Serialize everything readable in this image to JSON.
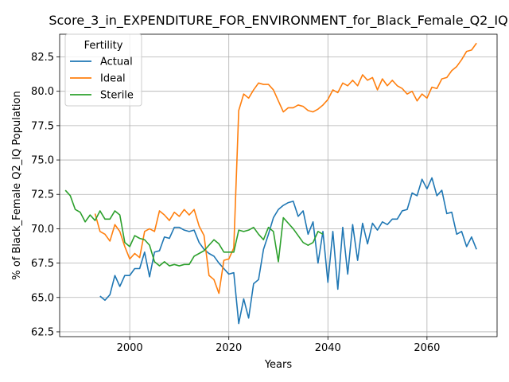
{
  "chart_data": {
    "type": "line",
    "title": "Score_3_in_EXPENDITURE_FOR_ENVIRONMENT_for_Black_Female_Q2_IQ",
    "xlabel": "Years",
    "ylabel": "% of Black_Female Q2_IQ Population",
    "xlim": [
      1985.85,
      2074.15
    ],
    "ylim": [
      62.15,
      84.15
    ],
    "xticks": [
      2000,
      2020,
      2040,
      2060
    ],
    "yticks": [
      62.5,
      65.0,
      67.5,
      70.0,
      72.5,
      75.0,
      77.5,
      80.0,
      82.5
    ],
    "grid": true,
    "legend": {
      "title": "Fertility",
      "placement": "top-left"
    },
    "series": [
      {
        "name": "Actual",
        "color": "#1f77b4",
        "x": [
          1994,
          1995,
          1996,
          1997,
          1998,
          1999,
          2000,
          2001,
          2002,
          2003,
          2004,
          2005,
          2006,
          2007,
          2008,
          2009,
          2010,
          2011,
          2012,
          2013,
          2014,
          2015,
          2016,
          2017,
          2018,
          2019,
          2020,
          2021,
          2022,
          2023,
          2024,
          2025,
          2026,
          2027,
          2028,
          2029,
          2030,
          2031,
          2032,
          2033,
          2034,
          2035,
          2036,
          2037,
          2038,
          2039,
          2040,
          2041,
          2042,
          2043,
          2044,
          2045,
          2046,
          2047,
          2048,
          2049,
          2050,
          2051,
          2052,
          2053,
          2054,
          2055,
          2056,
          2057,
          2058,
          2059,
          2060,
          2061,
          2062,
          2063,
          2064,
          2065,
          2066,
          2067,
          2068,
          2069,
          2070
        ],
        "values": [
          65.1,
          64.8,
          65.2,
          66.6,
          65.8,
          66.6,
          66.6,
          67.1,
          67.1,
          68.3,
          66.5,
          68.3,
          68.4,
          69.4,
          69.3,
          70.1,
          70.1,
          69.9,
          69.8,
          69.9,
          69.0,
          68.5,
          68.2,
          68.0,
          67.5,
          67.1,
          66.7,
          66.8,
          63.1,
          64.9,
          63.5,
          66.0,
          66.3,
          68.5,
          69.6,
          70.8,
          71.4,
          71.7,
          71.9,
          72.0,
          70.9,
          71.3,
          69.6,
          70.5,
          67.5,
          69.8,
          66.1,
          69.8,
          65.6,
          70.1,
          66.7,
          70.3,
          67.7,
          70.4,
          68.9,
          70.4,
          69.9,
          70.5,
          70.3,
          70.7,
          70.7,
          71.3,
          71.4,
          72.6,
          72.4,
          73.6,
          72.9,
          73.7,
          72.4,
          72.8,
          71.1,
          71.2,
          69.6,
          69.8,
          68.7,
          69.4,
          68.5
        ]
      },
      {
        "name": "Ideal",
        "color": "#ff7f0e",
        "x": [
          1993,
          1994,
          1995,
          1996,
          1997,
          1998,
          1999,
          2000,
          2001,
          2002,
          2003,
          2004,
          2005,
          2006,
          2007,
          2008,
          2009,
          2010,
          2011,
          2012,
          2013,
          2014,
          2015,
          2016,
          2017,
          2018,
          2019,
          2020,
          2021,
          2022,
          2023,
          2024,
          2025,
          2026,
          2027,
          2028,
          2029,
          2030,
          2031,
          2032,
          2033,
          2034,
          2035,
          2036,
          2037,
          2038,
          2039,
          2040,
          2041,
          2042,
          2043,
          2044,
          2045,
          2046,
          2047,
          2048,
          2049,
          2050,
          2051,
          2052,
          2053,
          2054,
          2055,
          2056,
          2057,
          2058,
          2059,
          2060,
          2061,
          2062,
          2063,
          2064,
          2065,
          2066,
          2067,
          2068,
          2069,
          2070
        ],
        "values": [
          71.1,
          69.8,
          69.6,
          69.1,
          70.3,
          69.8,
          68.7,
          67.8,
          68.2,
          67.9,
          69.8,
          70.0,
          69.8,
          71.3,
          71.0,
          70.6,
          71.2,
          70.9,
          71.4,
          71.0,
          71.4,
          70.2,
          69.5,
          66.6,
          66.3,
          65.3,
          67.7,
          67.8,
          68.6,
          78.6,
          79.8,
          79.5,
          80.1,
          80.6,
          80.5,
          80.5,
          80.1,
          79.3,
          78.5,
          78.8,
          78.8,
          79.0,
          78.9,
          78.6,
          78.5,
          78.7,
          79.0,
          79.4,
          80.1,
          79.9,
          80.6,
          80.4,
          80.8,
          80.4,
          81.2,
          80.8,
          81.0,
          80.1,
          80.9,
          80.4,
          80.8,
          80.4,
          80.2,
          79.8,
          80.0,
          79.3,
          79.8,
          79.5,
          80.3,
          80.2,
          80.9,
          81.0,
          81.5,
          81.8,
          82.3,
          82.9,
          83.0,
          83.5
        ]
      },
      {
        "name": "Sterile",
        "color": "#2ca02c",
        "x": [
          1987,
          1988,
          1989,
          1990,
          1991,
          1992,
          1993,
          1994,
          1995,
          1996,
          1997,
          1998,
          1999,
          2000,
          2001,
          2002,
          2003,
          2004,
          2005,
          2006,
          2007,
          2008,
          2009,
          2010,
          2011,
          2012,
          2013,
          2014,
          2015,
          2016,
          2017,
          2018,
          2019,
          2020,
          2021,
          2022,
          2023,
          2024,
          2025,
          2026,
          2027,
          2028,
          2029,
          2030,
          2031,
          2032,
          2033,
          2034,
          2035,
          2036,
          2037,
          2038,
          2039
        ],
        "values": [
          72.8,
          72.4,
          71.4,
          71.2,
          70.5,
          71.0,
          70.6,
          71.3,
          70.7,
          70.7,
          71.3,
          71.0,
          69.0,
          68.7,
          69.5,
          69.3,
          69.2,
          68.8,
          67.6,
          67.3,
          67.6,
          67.3,
          67.4,
          67.3,
          67.4,
          67.4,
          68.0,
          68.2,
          68.4,
          68.8,
          69.2,
          68.9,
          68.3,
          68.3,
          68.3,
          69.9,
          69.8,
          69.9,
          70.1,
          69.6,
          69.2,
          70.1,
          69.8,
          67.6,
          70.8,
          70.4,
          70.0,
          69.5,
          69.0,
          68.8,
          69.0,
          69.8,
          69.6
        ]
      }
    ]
  }
}
